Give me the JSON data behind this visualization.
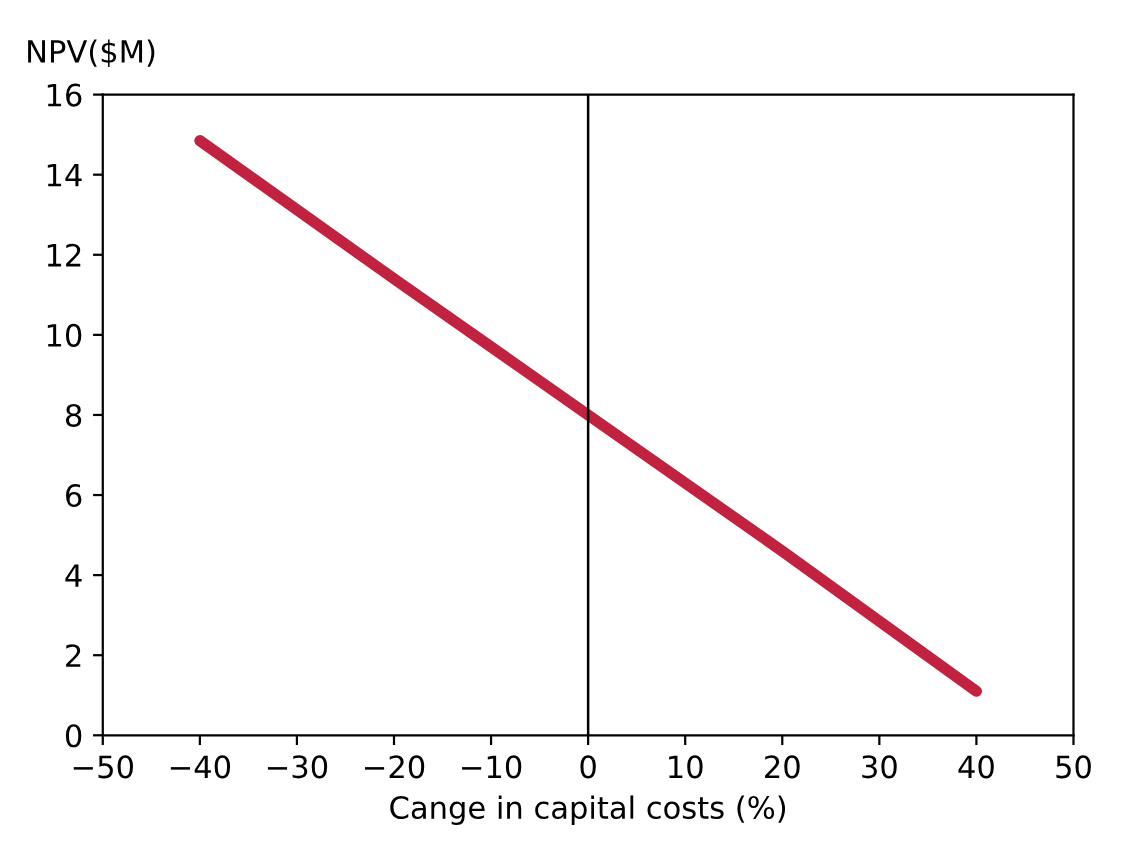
{
  "chart_data": {
    "type": "line",
    "ylabel": "NPV($M)",
    "xlabel": "Cange in capital costs (%)",
    "x": [
      -40,
      -20,
      0,
      20,
      40
    ],
    "series": [
      {
        "color": "#c0223f",
        "values": [
          14.85,
          11.4,
          8.0,
          4.6,
          1.1
        ]
      }
    ],
    "xlim": [
      -50,
      50
    ],
    "xticks": [
      {
        "value": -50,
        "label": "−50"
      },
      {
        "value": -40,
        "label": "−40"
      },
      {
        "value": -30,
        "label": "−30"
      },
      {
        "value": -20,
        "label": "−20"
      },
      {
        "value": -10,
        "label": "−10"
      },
      0,
      10,
      20,
      30,
      40,
      50
    ],
    "ylim": [
      0,
      16
    ],
    "yticks": [
      0,
      2,
      4,
      6,
      8,
      10,
      12,
      14,
      16
    ],
    "ref_lines": [
      {
        "axis": "x",
        "value": 0,
        "color": "#000000"
      }
    ],
    "grid": false,
    "legend": false,
    "marker": "none",
    "line_style": "solid"
  }
}
